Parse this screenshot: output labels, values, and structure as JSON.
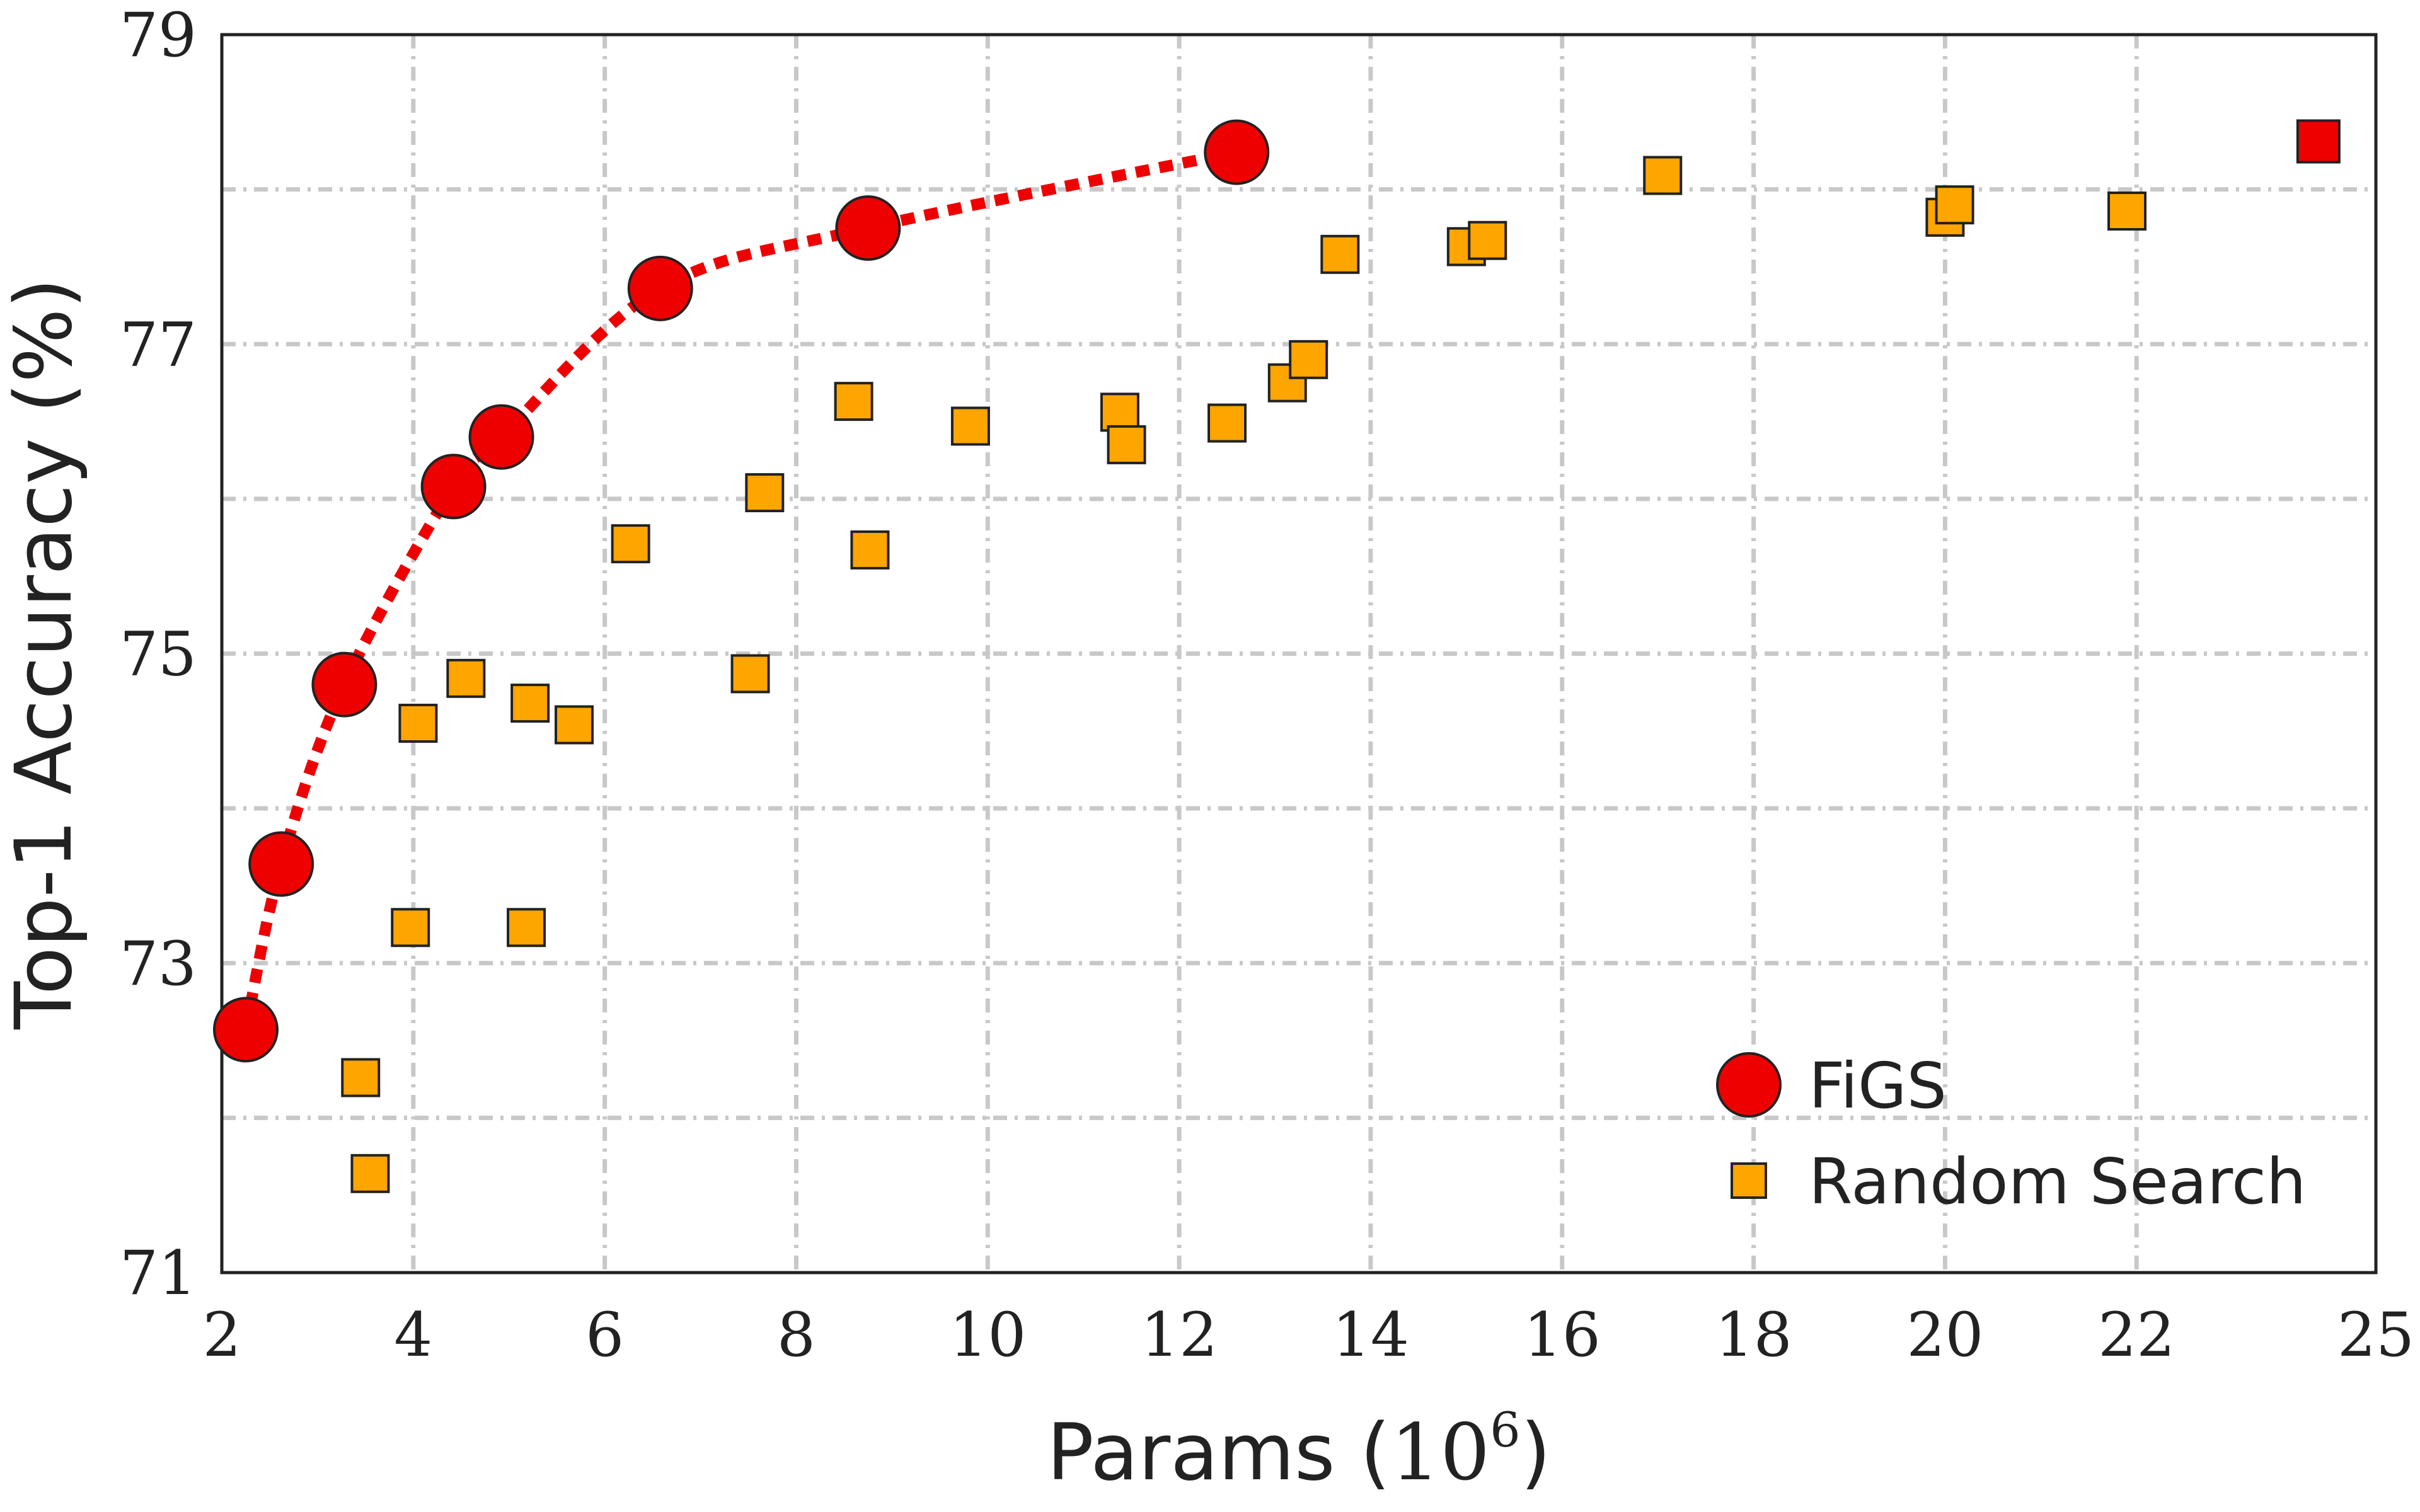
{
  "chart_data": {
    "type": "scatter",
    "title": "",
    "xlabel": "Params",
    "xlabel_exponent_base": "10",
    "xlabel_exponent": "6",
    "ylabel": "Top-1 Accuracy (%)",
    "xlim": [
      2,
      24.5
    ],
    "ylim": [
      71,
      79
    ],
    "x_ticks": [
      {
        "value": 2,
        "label": "2"
      },
      {
        "value": 4,
        "label": "4"
      },
      {
        "value": 6,
        "label": "6"
      },
      {
        "value": 8,
        "label": "8"
      },
      {
        "value": 10,
        "label": "10"
      },
      {
        "value": 12,
        "label": "12"
      },
      {
        "value": 14,
        "label": "14"
      },
      {
        "value": 16,
        "label": "16"
      },
      {
        "value": 18,
        "label": "18"
      },
      {
        "value": 20,
        "label": "20"
      },
      {
        "value": 22,
        "label": "22"
      },
      {
        "value": 24.5,
        "label": "25"
      }
    ],
    "y_ticks": [
      {
        "value": 71,
        "label": "71"
      },
      {
        "value": 73,
        "label": "73"
      },
      {
        "value": 75,
        "label": "75"
      },
      {
        "value": 77,
        "label": "77"
      },
      {
        "value": 79,
        "label": "79"
      }
    ],
    "y_grid": [
      72,
      73,
      74,
      75,
      76,
      77,
      78
    ],
    "grid": true,
    "legend_position": "bottom-right",
    "series": [
      {
        "name": "FiGS",
        "marker": "circle",
        "line": "dotted",
        "color": "#ee0000",
        "x": [
          2.25,
          2.62,
          3.28,
          4.42,
          4.92,
          6.58,
          8.75,
          12.6
        ],
        "y": [
          72.57,
          73.64,
          74.8,
          76.08,
          76.4,
          77.36,
          77.75,
          78.24
        ]
      },
      {
        "name": "Random Search",
        "marker": "square",
        "line": "none",
        "color": "#ffa500",
        "x": [
          3.45,
          3.55,
          3.97,
          4.05,
          4.55,
          5.18,
          5.22,
          5.68,
          6.27,
          7.52,
          7.67,
          8.6,
          8.77,
          9.82,
          11.38,
          11.45,
          12.5,
          13.13,
          13.35,
          13.68,
          15.0,
          15.22,
          17.05,
          20.0,
          20.1,
          21.9
        ],
        "y": [
          72.26,
          71.64,
          73.23,
          74.55,
          74.84,
          73.23,
          74.68,
          74.54,
          75.71,
          74.87,
          76.04,
          76.63,
          75.67,
          76.47,
          76.56,
          76.35,
          76.49,
          76.75,
          76.9,
          77.58,
          77.63,
          77.67,
          78.09,
          77.82,
          77.9,
          77.86
        ]
      },
      {
        "name": "",
        "marker": "square",
        "line": "none",
        "color": "#ee0000",
        "x": [
          23.9
        ],
        "y": [
          78.31
        ]
      }
    ]
  }
}
